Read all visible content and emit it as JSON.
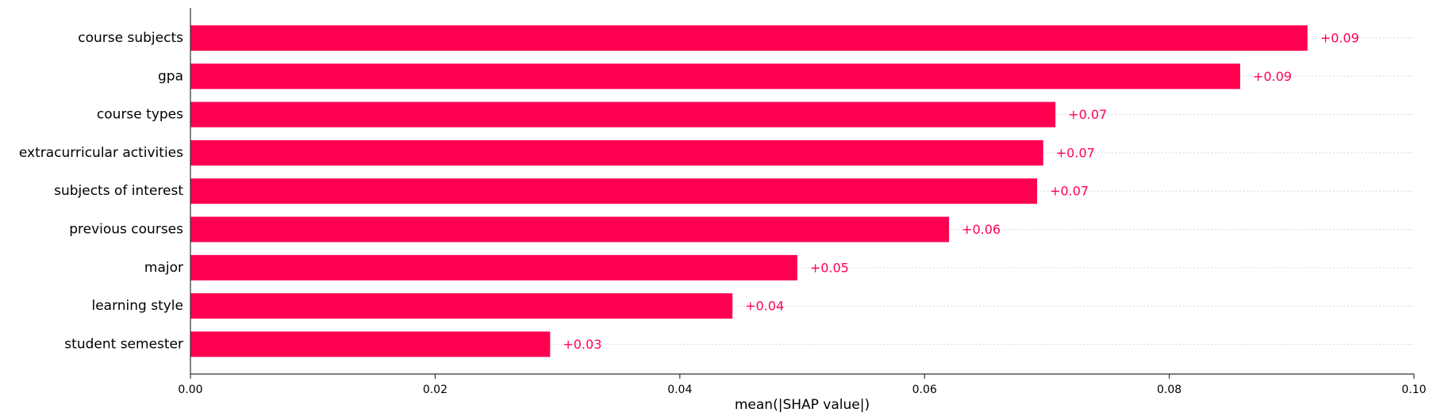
{
  "chart_data": {
    "type": "bar",
    "orientation": "horizontal",
    "categories": [
      "course subjects",
      "gpa",
      "course types",
      "extracurricular activities",
      "subjects of interest",
      "previous courses",
      "major",
      "learning style",
      "student semester"
    ],
    "values": [
      0.0913,
      0.0858,
      0.0707,
      0.0697,
      0.0692,
      0.062,
      0.0496,
      0.0443,
      0.0294
    ],
    "value_labels": [
      "+0.09",
      "+0.09",
      "+0.07",
      "+0.07",
      "+0.07",
      "+0.06",
      "+0.05",
      "+0.04",
      "+0.03"
    ],
    "xlabel": "mean(|SHAP value|)",
    "ylabel": "",
    "xlim": [
      0.0,
      0.1
    ],
    "xticks": [
      0.0,
      0.02,
      0.04,
      0.06,
      0.08,
      0.1
    ],
    "xtick_labels": [
      "0.00",
      "0.02",
      "0.04",
      "0.06",
      "0.08",
      "0.10"
    ],
    "grid": "dotted horizontal guide lines per category",
    "bar_color": "#ff0051",
    "label_color": "#ff0051"
  }
}
